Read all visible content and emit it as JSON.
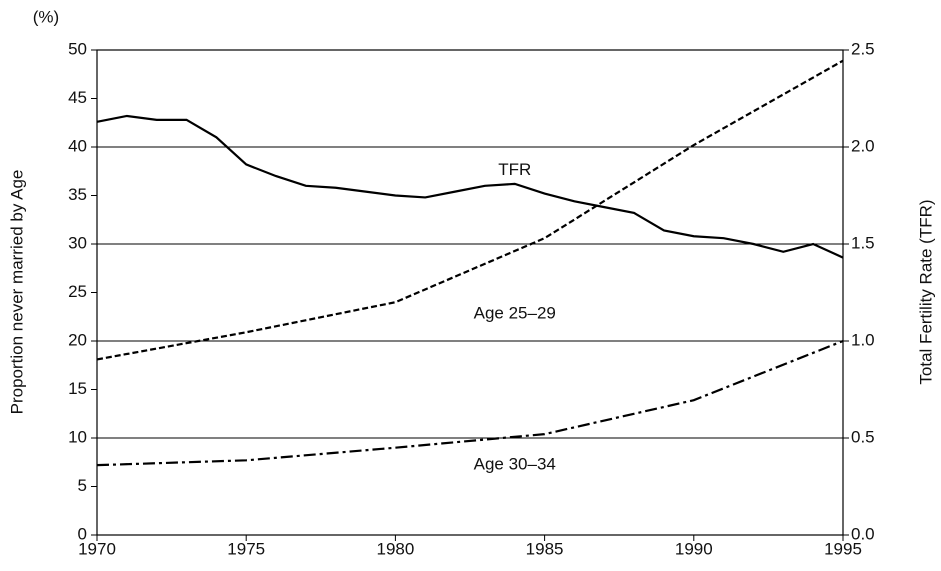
{
  "chart_data": {
    "type": "line",
    "unit_label": "(%)",
    "ylabel": "Proportion never married by Age",
    "y2label": "Total Fertility Rate (TFR)",
    "xlim": [
      1970,
      1995
    ],
    "xticks": [
      1970,
      1975,
      1980,
      1985,
      1990,
      1995
    ],
    "ylim": [
      0,
      50
    ],
    "yticks": [
      0,
      5,
      10,
      15,
      20,
      25,
      30,
      35,
      40,
      45,
      50
    ],
    "y2lim": [
      0,
      2.5
    ],
    "y2ticks": [
      {
        "value": 0,
        "label": "0.0"
      },
      0.5,
      {
        "value": 1,
        "label": "1.0"
      },
      1.5,
      {
        "value": 2,
        "label": "2.0"
      },
      2.5
    ],
    "grid": true,
    "series": [
      {
        "name": "TFR",
        "axis": "y2",
        "color": "#000000",
        "dash": "solid",
        "x": [
          1970,
          1971,
          1972,
          1973,
          1974,
          1975,
          1976,
          1977,
          1978,
          1979,
          1980,
          1981,
          1982,
          1983,
          1984,
          1985,
          1986,
          1987,
          1988,
          1989,
          1990,
          1991,
          1992,
          1993,
          1994,
          1995
        ],
        "values": [
          2.13,
          2.16,
          2.14,
          2.14,
          2.05,
          1.91,
          1.85,
          1.8,
          1.79,
          1.77,
          1.75,
          1.74,
          1.77,
          1.8,
          1.81,
          1.76,
          1.72,
          1.69,
          1.66,
          1.57,
          1.54,
          1.53,
          1.5,
          1.46,
          1.5,
          1.43
        ]
      },
      {
        "name": "Age 25–29",
        "color": "#000000",
        "dash": "dashed",
        "x": [
          1970,
          1975,
          1980,
          1985,
          1990,
          1995
        ],
        "values": [
          18.1,
          20.9,
          24.0,
          30.6,
          40.2,
          48.9
        ]
      },
      {
        "name": "Age 30–34",
        "color": "#000000",
        "dash": "dashdot",
        "x": [
          1970,
          1975,
          1980,
          1985,
          1990,
          1995
        ],
        "values": [
          7.2,
          7.7,
          9.0,
          10.4,
          13.9,
          20.0
        ]
      }
    ]
  }
}
